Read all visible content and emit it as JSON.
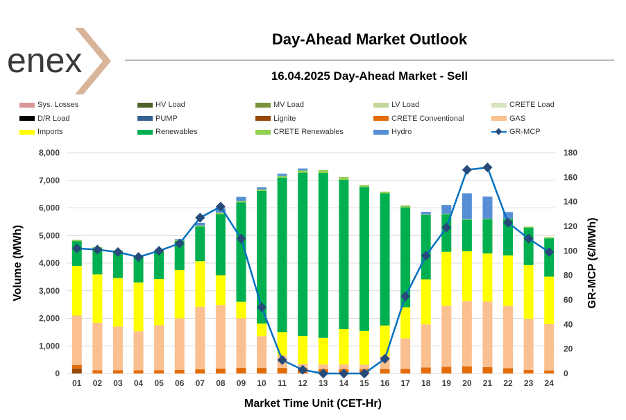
{
  "header": {
    "logo_text": "enex",
    "title": "Day-Ahead Market Outlook",
    "subtitle": "16.04.2025  Day-Ahead Market - Sell"
  },
  "chart_data": {
    "type": "bar",
    "title": "16.04.2025  Day-Ahead Market - Sell",
    "xlabel": "Market Time Unit (CET-Hr)",
    "ylabel": "Volume (MWh)",
    "y2label": "GR-MCP (€/MWh)",
    "ylim": [
      0,
      8000
    ],
    "y2lim": [
      0,
      180
    ],
    "yticks": [
      "0",
      "1,000",
      "2,000",
      "3,000",
      "4,000",
      "5,000",
      "6,000",
      "7,000",
      "8,000"
    ],
    "y2ticks": [
      "0",
      "20",
      "40",
      "60",
      "80",
      "100",
      "120",
      "140",
      "160",
      "180"
    ],
    "categories": [
      "01",
      "02",
      "03",
      "04",
      "05",
      "06",
      "07",
      "08",
      "09",
      "10",
      "11",
      "12",
      "13",
      "14",
      "15",
      "16",
      "17",
      "18",
      "19",
      "20",
      "21",
      "22",
      "23",
      "24"
    ],
    "legend": [
      {
        "name": "Sys. Losses",
        "color": "#d99694",
        "kind": "bar"
      },
      {
        "name": "HV Load",
        "color": "#4f6228",
        "kind": "bar"
      },
      {
        "name": "MV Load",
        "color": "#77933c",
        "kind": "bar"
      },
      {
        "name": "LV Load",
        "color": "#c3d69b",
        "kind": "bar"
      },
      {
        "name": "CRETE Load",
        "color": "#d7e4bd",
        "kind": "bar"
      },
      {
        "name": "D/R Load",
        "color": "#000000",
        "kind": "bar"
      },
      {
        "name": "PUMP",
        "color": "#366092",
        "kind": "bar"
      },
      {
        "name": "Lignite",
        "color": "#974706",
        "kind": "bar"
      },
      {
        "name": "CRETE Conventional",
        "color": "#e36c09",
        "kind": "bar"
      },
      {
        "name": "GAS",
        "color": "#fac090",
        "kind": "bar"
      },
      {
        "name": "Imports",
        "color": "#ffff00",
        "kind": "bar"
      },
      {
        "name": "Renewables",
        "color": "#00b050",
        "kind": "bar"
      },
      {
        "name": "CRETE Renewables",
        "color": "#92d050",
        "kind": "bar"
      },
      {
        "name": "Hydro",
        "color": "#558ed5",
        "kind": "bar"
      },
      {
        "name": "GR-MCP",
        "color": "#0070c0",
        "kind": "line"
      }
    ],
    "series": [
      {
        "name": "Lignite",
        "color": "#974706",
        "values": [
          180,
          0,
          0,
          0,
          0,
          0,
          0,
          0,
          0,
          0,
          0,
          0,
          0,
          0,
          0,
          0,
          0,
          0,
          0,
          0,
          0,
          0,
          0,
          0
        ]
      },
      {
        "name": "CRETE Conventional",
        "color": "#e36c09",
        "values": [
          130,
          120,
          120,
          120,
          120,
          130,
          150,
          180,
          200,
          200,
          200,
          200,
          160,
          160,
          160,
          160,
          170,
          220,
          240,
          260,
          230,
          190,
          130,
          110
        ]
      },
      {
        "name": "GAS",
        "color": "#fac090",
        "values": [
          1790,
          1720,
          1580,
          1410,
          1630,
          1870,
          2270,
          2300,
          1800,
          1150,
          450,
          150,
          170,
          170,
          160,
          470,
          1100,
          1560,
          2210,
          2360,
          2380,
          2260,
          1850,
          1680
        ]
      },
      {
        "name": "Imports",
        "color": "#ffff00",
        "values": [
          1800,
          1750,
          1760,
          1770,
          1670,
          1750,
          1650,
          1080,
          600,
          460,
          850,
          1010,
          960,
          1280,
          1220,
          1110,
          1130,
          1630,
          1960,
          1810,
          1740,
          1830,
          1950,
          1720
        ]
      },
      {
        "name": "Renewables",
        "color": "#00b050",
        "values": [
          900,
          950,
          960,
          950,
          1000,
          1060,
          1250,
          2220,
          3600,
          4810,
          5600,
          5920,
          5980,
          5410,
          5220,
          4790,
          3620,
          2330,
          1360,
          1140,
          1240,
          1310,
          1350,
          1390
        ]
      },
      {
        "name": "CRETE Renewables",
        "color": "#92d050",
        "values": [
          40,
          40,
          40,
          40,
          40,
          30,
          40,
          50,
          50,
          50,
          60,
          80,
          100,
          100,
          70,
          60,
          70,
          20,
          20,
          20,
          20,
          20,
          40,
          40
        ]
      },
      {
        "name": "Hydro",
        "color": "#558ed5",
        "values": [
          0,
          0,
          0,
          0,
          0,
          30,
          100,
          150,
          150,
          80,
          80,
          70,
          0,
          0,
          0,
          0,
          0,
          100,
          320,
          940,
          800,
          240,
          0,
          0
        ]
      }
    ],
    "line": {
      "name": "GR-MCP",
      "color": "#0070c0",
      "marker_color": "#264b7a",
      "values": [
        102,
        101,
        99,
        95,
        100,
        106,
        127,
        136,
        110,
        54,
        11,
        3,
        0,
        0,
        0,
        12,
        63,
        96,
        119,
        166,
        168,
        123,
        110,
        99
      ]
    }
  }
}
